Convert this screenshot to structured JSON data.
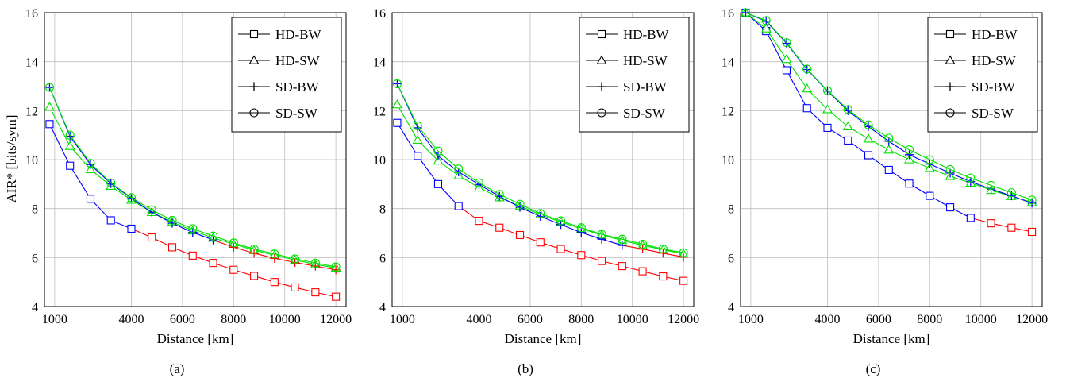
{
  "ylabel": "AIR* [bits/sym]",
  "legend": {
    "placement": "top-right",
    "entries": [
      {
        "label": "HD-BW",
        "marker": "square"
      },
      {
        "label": "HD-SW",
        "marker": "triangle"
      },
      {
        "label": "SD-BW",
        "marker": "plus"
      },
      {
        "label": "SD-SW",
        "marker": "circle"
      }
    ]
  },
  "colors": {
    "blue": "#0000ff",
    "red": "#ff0000",
    "green": "#00e000",
    "grid": "#bdbdbd"
  },
  "chart_data": [
    {
      "type": "line",
      "caption": "(a)",
      "xlabel": "Distance [km]",
      "ylabel": "AIR* [bits/sym]",
      "xlim": [
        600,
        12400
      ],
      "ylim": [
        4,
        16
      ],
      "xticks": [
        1000,
        4000,
        6000,
        8000,
        10000,
        12000
      ],
      "xtick_labels": [
        "1000",
        "4000",
        "6000",
        "8000",
        "10000",
        "12000"
      ],
      "yticks": [
        4,
        6,
        8,
        10,
        12,
        14,
        16
      ],
      "grid": true,
      "x": [
        800,
        1600,
        2400,
        3200,
        4000,
        4800,
        5600,
        6400,
        7200,
        8000,
        8800,
        9600,
        10400,
        11200,
        12000
      ],
      "series": [
        {
          "name": "HD-BW",
          "marker": "square",
          "blue_until": 4000,
          "values": [
            11.45,
            9.75,
            8.4,
            7.52,
            7.18,
            6.82,
            6.42,
            6.08,
            5.78,
            5.5,
            5.25,
            5.0,
            4.78,
            4.58,
            4.4
          ]
        },
        {
          "name": "HD-SW",
          "marker": "triangle",
          "values": [
            12.15,
            10.55,
            9.6,
            8.92,
            8.35,
            7.85,
            7.45,
            7.1,
            6.8,
            6.55,
            6.3,
            6.1,
            5.9,
            5.72,
            5.58
          ]
        },
        {
          "name": "SD-BW",
          "marker": "plus",
          "blue_until": 7200,
          "values": [
            12.95,
            10.95,
            9.8,
            9.02,
            8.42,
            7.85,
            7.4,
            7.03,
            6.72,
            6.42,
            6.18,
            5.97,
            5.8,
            5.65,
            5.5
          ]
        },
        {
          "name": "SD-SW",
          "marker": "circle",
          "values": [
            12.95,
            11.0,
            9.85,
            9.05,
            8.45,
            7.95,
            7.52,
            7.18,
            6.88,
            6.6,
            6.35,
            6.15,
            5.95,
            5.78,
            5.62
          ]
        }
      ]
    },
    {
      "type": "line",
      "caption": "(b)",
      "xlabel": "Distance [km]",
      "xlim": [
        600,
        12400
      ],
      "ylim": [
        4,
        16
      ],
      "xticks": [
        1000,
        4000,
        6000,
        8000,
        10000,
        12000
      ],
      "xtick_labels": [
        "1000",
        "4000",
        "6000",
        "8000",
        "10000",
        "12000"
      ],
      "yticks": [
        4,
        6,
        8,
        10,
        12,
        14,
        16
      ],
      "grid": true,
      "x": [
        800,
        1600,
        2400,
        3200,
        4000,
        4800,
        5600,
        6400,
        7200,
        8000,
        8800,
        9600,
        10400,
        11200,
        12000
      ],
      "series": [
        {
          "name": "HD-BW",
          "marker": "square",
          "blue_until": 3200,
          "values": [
            11.5,
            10.15,
            9.0,
            8.1,
            7.5,
            7.22,
            6.92,
            6.62,
            6.35,
            6.1,
            5.86,
            5.65,
            5.44,
            5.23,
            5.05
          ]
        },
        {
          "name": "HD-SW",
          "marker": "triangle",
          "values": [
            12.25,
            10.8,
            9.95,
            9.35,
            8.85,
            8.45,
            8.1,
            7.75,
            7.45,
            7.18,
            6.92,
            6.7,
            6.5,
            6.32,
            6.15
          ]
        },
        {
          "name": "SD-BW",
          "marker": "plus",
          "blue_until": 9600,
          "values": [
            13.1,
            11.3,
            10.15,
            9.5,
            8.98,
            8.5,
            8.05,
            7.68,
            7.35,
            7.02,
            6.75,
            6.5,
            6.35,
            6.18,
            6.02
          ]
        },
        {
          "name": "SD-SW",
          "marker": "circle",
          "values": [
            13.1,
            11.38,
            10.35,
            9.62,
            9.05,
            8.58,
            8.18,
            7.8,
            7.5,
            7.22,
            6.95,
            6.75,
            6.55,
            6.35,
            6.2
          ]
        }
      ]
    },
    {
      "type": "line",
      "caption": "(c)",
      "xlabel": "Distance [km]",
      "xlim": [
        600,
        12400
      ],
      "ylim": [
        4,
        16
      ],
      "xticks": [
        1000,
        4000,
        6000,
        8000,
        10000,
        12000
      ],
      "xtick_labels": [
        "1000",
        "4000",
        "6000",
        "8000",
        "10000",
        "12000"
      ],
      "yticks": [
        4,
        6,
        8,
        10,
        12,
        14,
        16
      ],
      "grid": true,
      "x": [
        800,
        1600,
        2400,
        3200,
        4000,
        4800,
        5600,
        6400,
        7200,
        8000,
        8800,
        9600,
        10400,
        11200,
        12000
      ],
      "series": [
        {
          "name": "HD-BW",
          "marker": "square",
          "blue_until": 9600,
          "values": [
            16.0,
            15.25,
            13.65,
            12.1,
            11.3,
            10.78,
            10.18,
            9.58,
            9.02,
            8.52,
            8.05,
            7.62,
            7.4,
            7.22,
            7.05
          ]
        },
        {
          "name": "HD-SW",
          "marker": "triangle",
          "values": [
            16.0,
            15.35,
            14.1,
            12.9,
            12.05,
            11.35,
            10.85,
            10.4,
            10.0,
            9.65,
            9.32,
            9.05,
            8.75,
            8.5,
            8.25
          ]
        },
        {
          "name": "SD-BW",
          "marker": "plus",
          "blue_until": 12000,
          "values": [
            16.0,
            15.65,
            14.75,
            13.68,
            12.8,
            12.0,
            11.35,
            10.75,
            10.2,
            9.82,
            9.45,
            9.1,
            8.8,
            8.52,
            8.22
          ]
        },
        {
          "name": "SD-SW",
          "marker": "circle",
          "values": [
            16.0,
            15.68,
            14.78,
            13.7,
            12.82,
            12.05,
            11.42,
            10.88,
            10.4,
            10.0,
            9.6,
            9.25,
            8.95,
            8.65,
            8.35
          ]
        }
      ]
    }
  ]
}
